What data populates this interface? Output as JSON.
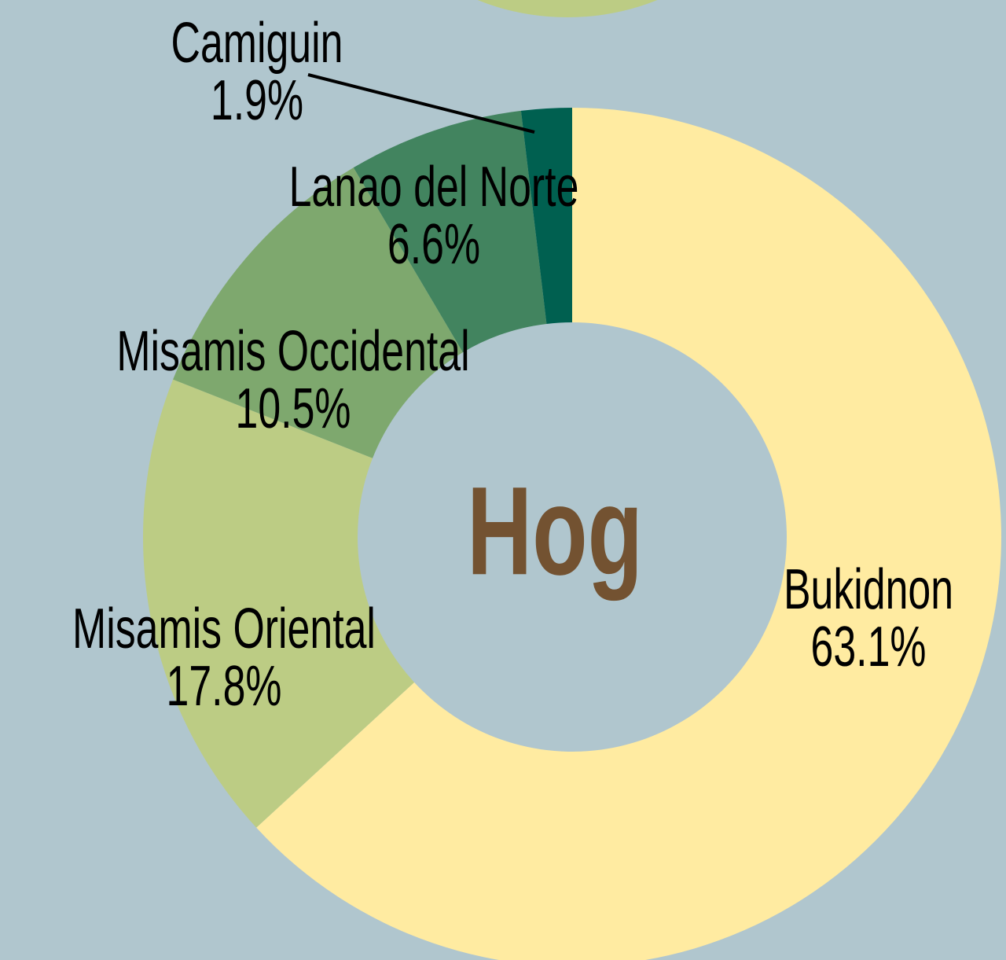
{
  "chart_data": {
    "type": "donut",
    "title": "Hog",
    "categories": [
      "Bukidnon",
      "Misamis Oriental",
      "Misamis Occidental",
      "Lanao del Norte",
      "Camiguin"
    ],
    "values": [
      63.1,
      17.8,
      10.5,
      6.6,
      1.9
    ],
    "value_labels": [
      "63.1%",
      "17.8%",
      "10.5%",
      "6.6%",
      "1.9%"
    ],
    "colors": [
      "#ffeba1",
      "#bccc84",
      "#7ea86e",
      "#42845f",
      "#006050"
    ]
  }
}
